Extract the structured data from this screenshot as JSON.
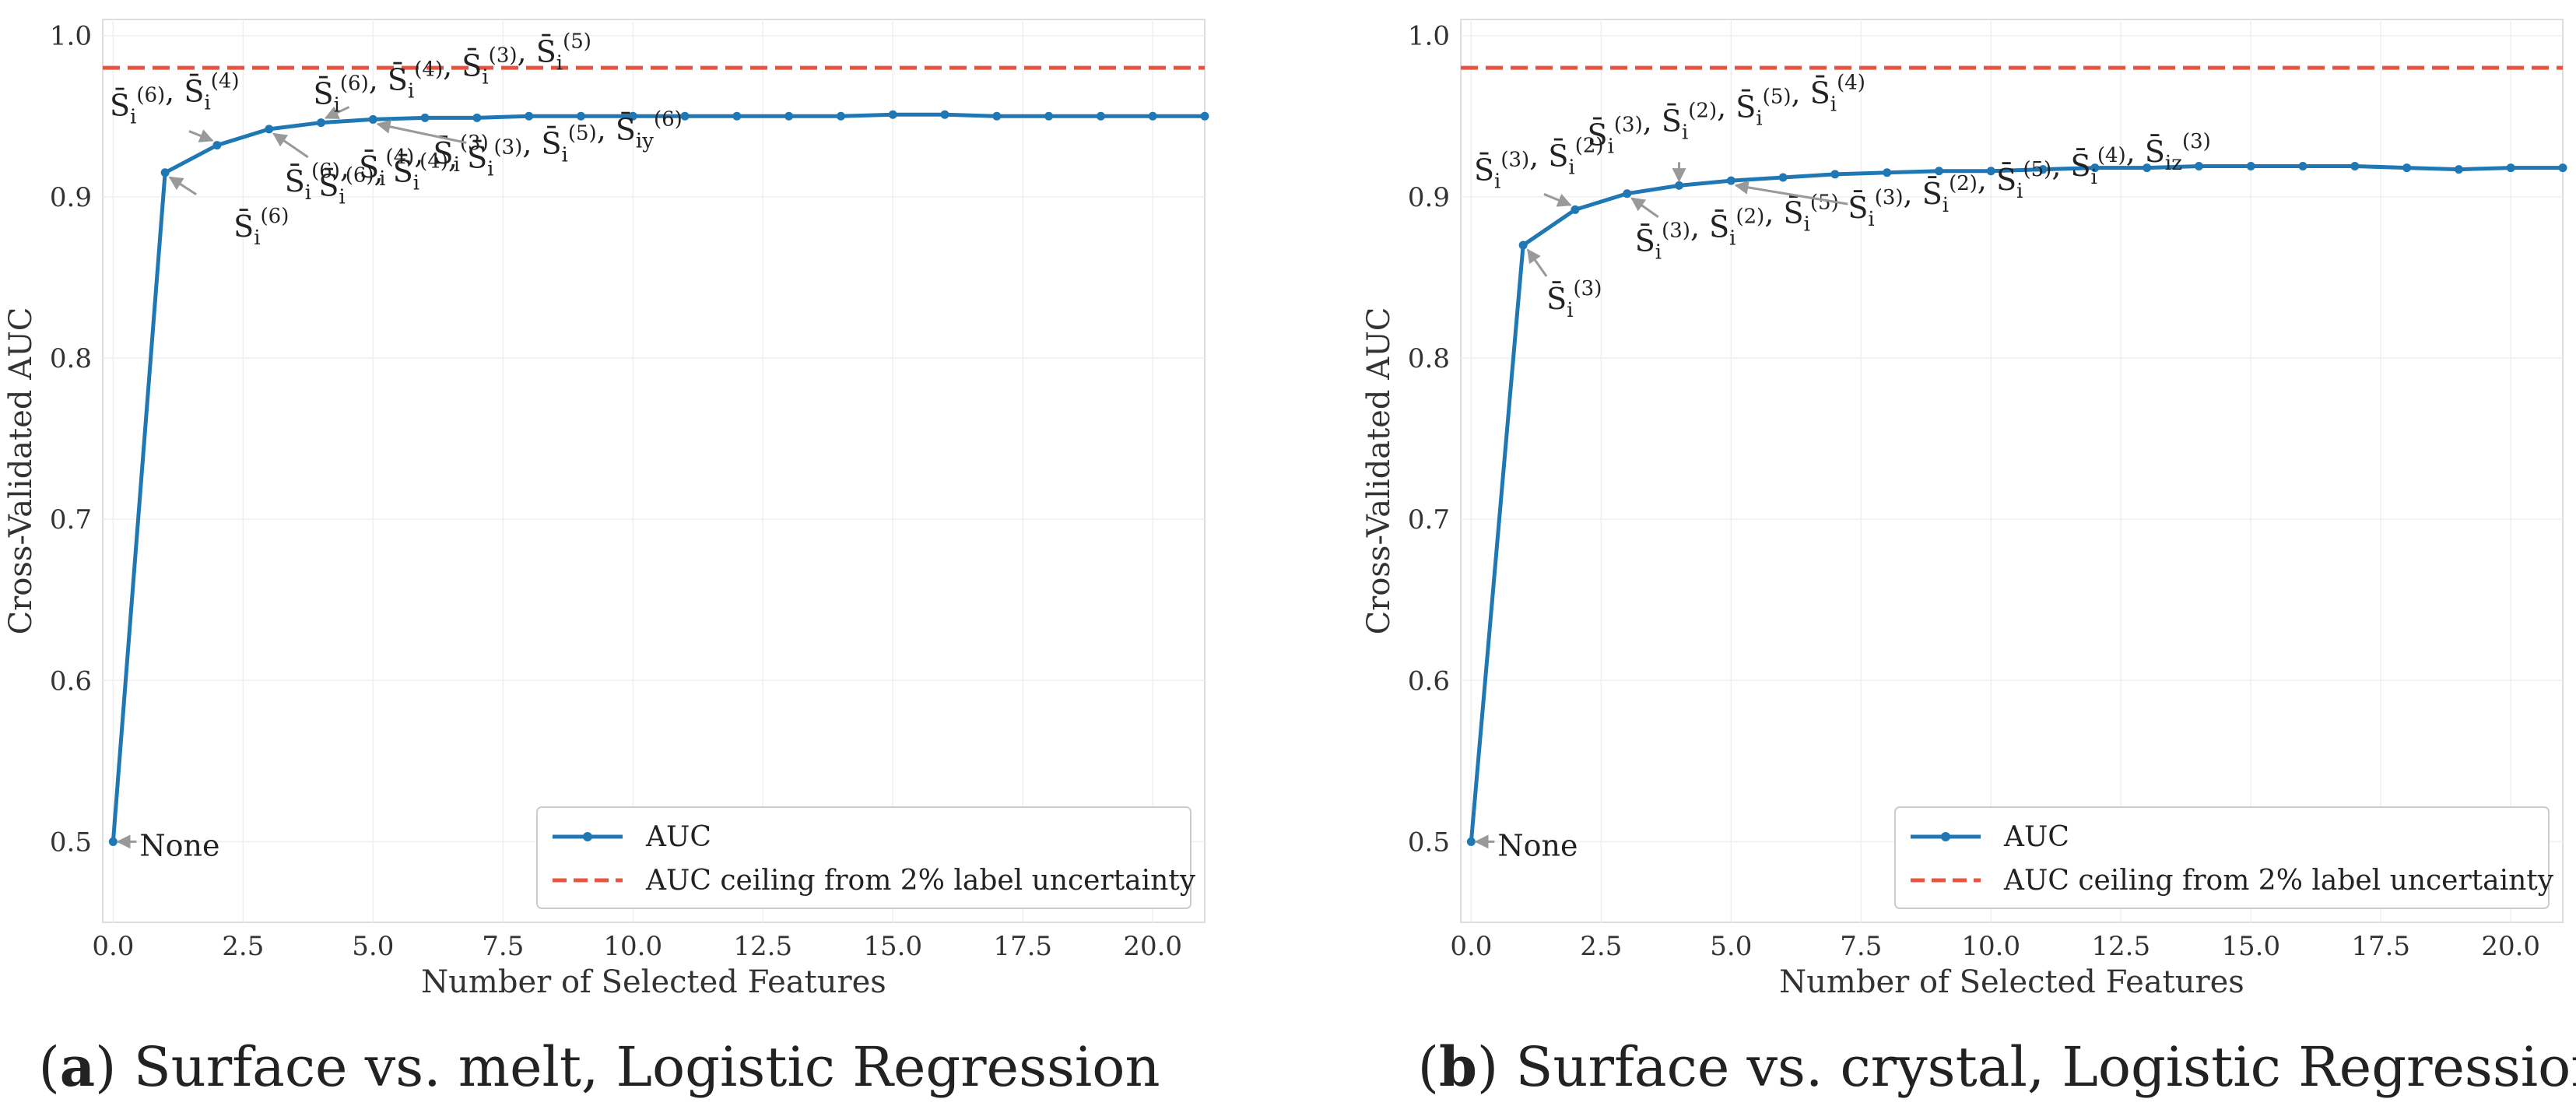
{
  "chart_data": [
    {
      "type": "line",
      "caption_label": "a",
      "caption_text": "Surface vs. melt, Logistic Regression",
      "xlabel": "Number of Selected Features",
      "ylabel": "Cross-Validated AUC",
      "xlim": [
        -0.2,
        21
      ],
      "ylim": [
        0.45,
        1.01
      ],
      "xticks": [
        "0.0",
        "2.5",
        "5.0",
        "7.5",
        "10.0",
        "12.5",
        "15.0",
        "17.5",
        "20.0"
      ],
      "yticks": [
        "0.5",
        "0.6",
        "0.7",
        "0.8",
        "0.9",
        "1.0"
      ],
      "grid": true,
      "legend_position": "bottom-right",
      "series": [
        {
          "name": "AUC",
          "color": "#1f77b4",
          "x": [
            0,
            1,
            2,
            3,
            4,
            5,
            6,
            7,
            8,
            9,
            10,
            11,
            12,
            13,
            14,
            15,
            16,
            17,
            18,
            19,
            20,
            21
          ],
          "values": [
            0.5,
            0.915,
            0.932,
            0.942,
            0.946,
            0.948,
            0.949,
            0.949,
            0.95,
            0.95,
            0.95,
            0.95,
            0.95,
            0.95,
            0.95,
            0.951,
            0.951,
            0.95,
            0.95,
            0.95,
            0.95,
            0.95
          ]
        },
        {
          "name": "AUC ceiling from 2% label uncertainty",
          "color": "#e8543f",
          "style": "dashed",
          "value": 0.98
        }
      ],
      "annotations": [
        {
          "text": "None",
          "point_x": 0,
          "point_y": 0.5,
          "anchor": "right-of-point"
        },
        {
          "text": "S̄i(6)",
          "point_x": 1,
          "point_y": 0.915,
          "anchor": "below-right"
        },
        {
          "text": "S̄i(6), S̄i(4)",
          "point_x": 2,
          "point_y": 0.932,
          "anchor": "upper-left"
        },
        {
          "text": "S̄i(6), S̄i(4), S̄i(3)",
          "point_x": 3,
          "point_y": 0.942,
          "anchor": "below-right"
        },
        {
          "text": "S̄i(6), S̄i(4), S̄i(3), S̄i(5)",
          "point_x": 4,
          "point_y": 0.946,
          "anchor": "above"
        },
        {
          "text": "S̄i(6), S̄i(4), S̄i(3), S̄i(5), S̄iy(6)",
          "point_x": 5,
          "point_y": 0.948,
          "anchor": "below-right"
        }
      ]
    },
    {
      "type": "line",
      "caption_label": "b",
      "caption_text": "Surface vs. crystal, Logistic Regression",
      "xlabel": "Number of Selected Features",
      "ylabel": "Cross-Validated AUC",
      "xlim": [
        -0.2,
        21
      ],
      "ylim": [
        0.45,
        1.01
      ],
      "xticks": [
        "0.0",
        "2.5",
        "5.0",
        "7.5",
        "10.0",
        "12.5",
        "15.0",
        "17.5",
        "20.0"
      ],
      "yticks": [
        "0.5",
        "0.6",
        "0.7",
        "0.8",
        "0.9",
        "1.0"
      ],
      "grid": true,
      "legend_position": "bottom-right",
      "series": [
        {
          "name": "AUC",
          "color": "#1f77b4",
          "x": [
            0,
            1,
            2,
            3,
            4,
            5,
            6,
            7,
            8,
            9,
            10,
            11,
            12,
            13,
            14,
            15,
            16,
            17,
            18,
            19,
            20,
            21
          ],
          "values": [
            0.5,
            0.87,
            0.892,
            0.902,
            0.907,
            0.91,
            0.912,
            0.914,
            0.915,
            0.916,
            0.916,
            0.917,
            0.918,
            0.918,
            0.919,
            0.919,
            0.919,
            0.919,
            0.918,
            0.917,
            0.918,
            0.918
          ]
        },
        {
          "name": "AUC ceiling from 2% label uncertainty",
          "color": "#e8543f",
          "style": "dashed",
          "value": 0.98
        }
      ],
      "annotations": [
        {
          "text": "None",
          "point_x": 0,
          "point_y": 0.5,
          "anchor": "right-of-point"
        },
        {
          "text": "S̄i(3)",
          "point_x": 1,
          "point_y": 0.87,
          "anchor": "below-right"
        },
        {
          "text": "S̄i(3), S̄i(2)",
          "point_x": 2,
          "point_y": 0.892,
          "anchor": "upper-left"
        },
        {
          "text": "S̄i(3), S̄i(2), S̄i(5)",
          "point_x": 3,
          "point_y": 0.902,
          "anchor": "below-right"
        },
        {
          "text": "S̄i(3), S̄i(2), S̄i(5), S̄i(4)",
          "point_x": 4,
          "point_y": 0.907,
          "anchor": "above"
        },
        {
          "text": "S̄i(3), S̄i(2), S̄i(5), S̄i(4), S̄iz(3)",
          "point_x": 5,
          "point_y": 0.91,
          "anchor": "below-right"
        }
      ]
    }
  ]
}
